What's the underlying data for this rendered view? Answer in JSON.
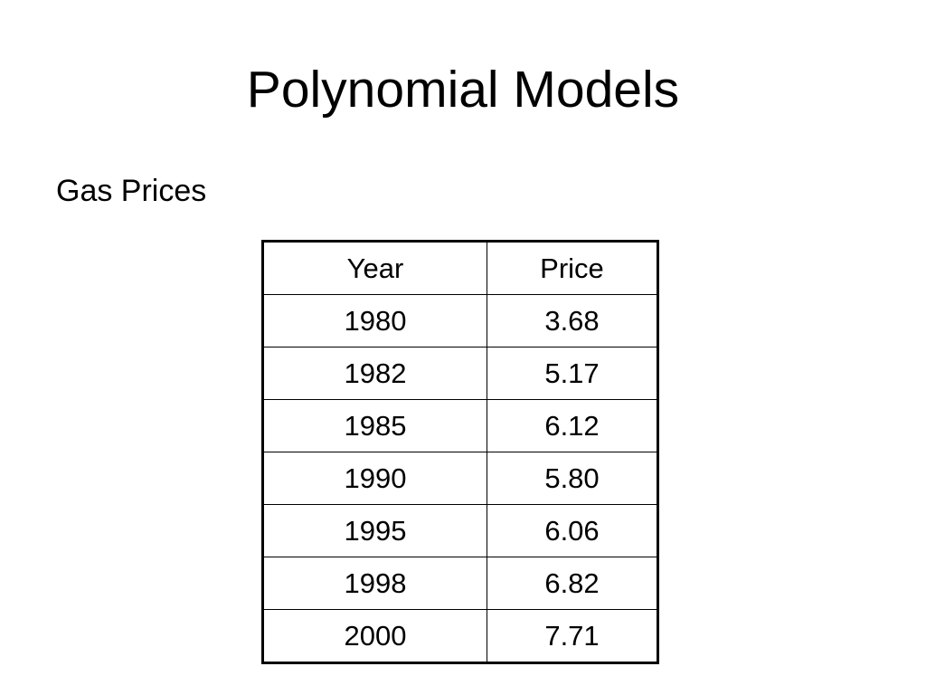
{
  "slide": {
    "title": "Polynomial Models",
    "subtitle": "Gas Prices"
  },
  "table": {
    "headers": [
      "Year",
      "Price"
    ],
    "rows": [
      [
        "1980",
        "3.68"
      ],
      [
        "1982",
        "5.17"
      ],
      [
        "1985",
        "6.12"
      ],
      [
        "1990",
        "5.80"
      ],
      [
        "1995",
        "6.06"
      ],
      [
        "1998",
        "6.82"
      ],
      [
        "2000",
        "7.71"
      ]
    ]
  }
}
